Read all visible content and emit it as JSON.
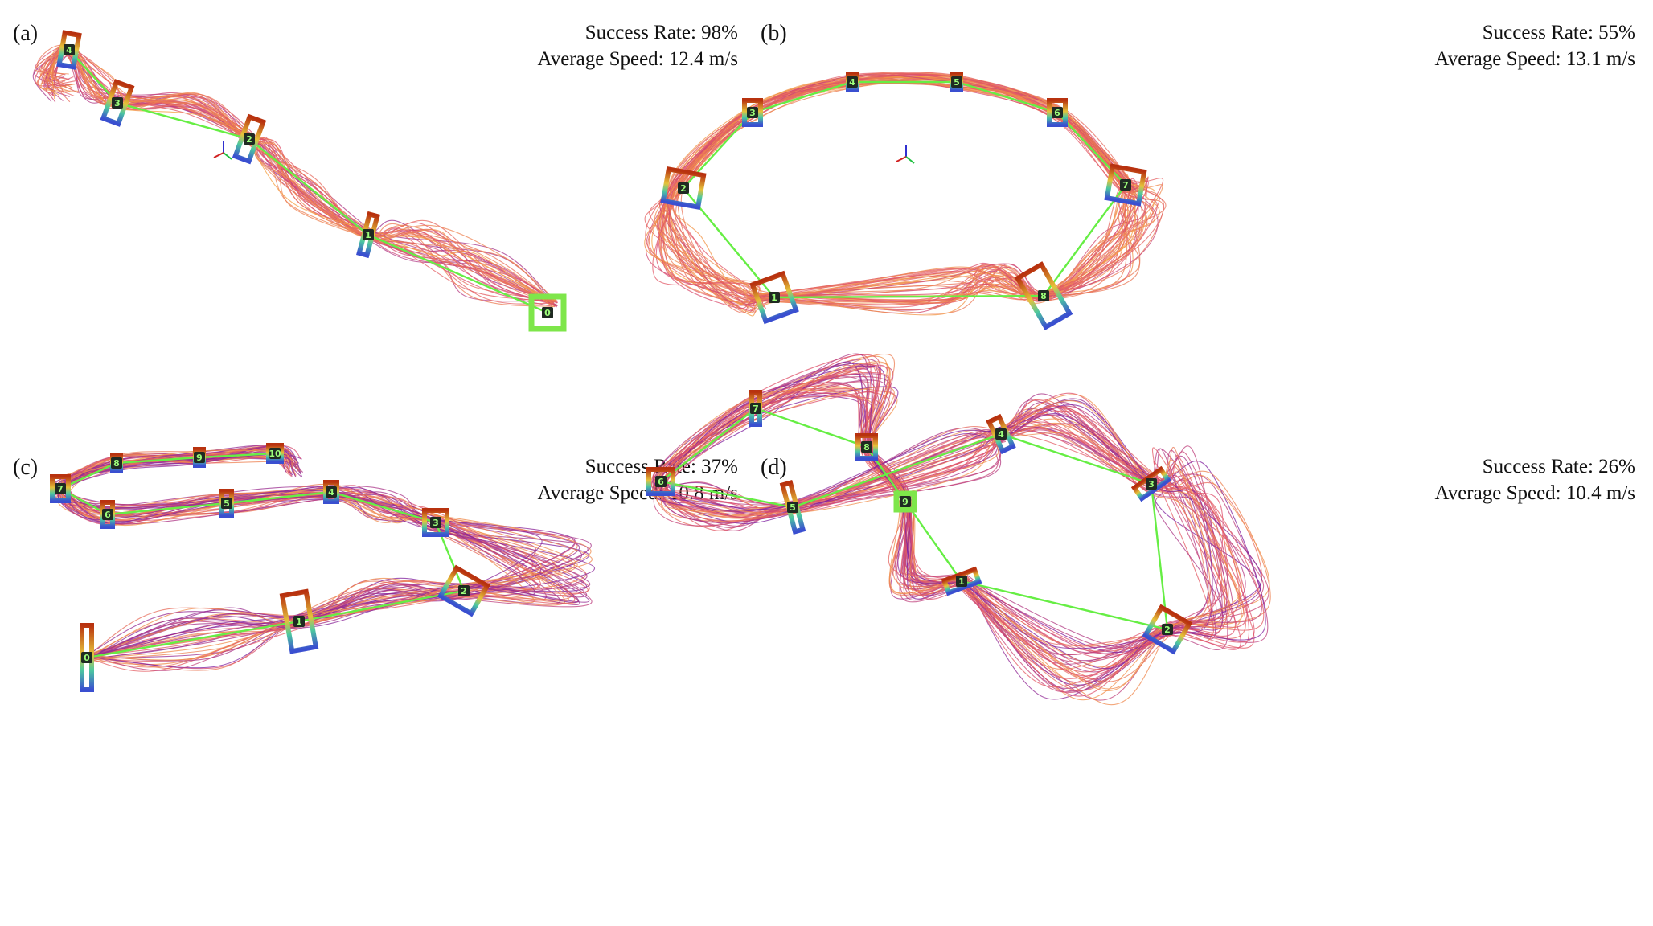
{
  "panels": [
    {
      "label": "(a)",
      "success_rate": "Success Rate: 98%",
      "average_speed": "Average Speed: 12.4 m/s",
      "gate_ids": [
        "0",
        "1",
        "2",
        "3",
        "4"
      ]
    },
    {
      "label": "(b)",
      "success_rate": "Success Rate: 55%",
      "average_speed": "Average Speed: 13.1 m/s",
      "gate_ids": [
        "1",
        "2",
        "3",
        "4",
        "5",
        "6",
        "7",
        "8"
      ]
    },
    {
      "label": "(c)",
      "success_rate": "Success Rate: 37%",
      "average_speed": "Average Speed: 10.8 m/s",
      "gate_ids": [
        "0",
        "1",
        "2",
        "3",
        "4",
        "5",
        "6",
        "7",
        "8",
        "9",
        "10"
      ]
    },
    {
      "label": "(d)",
      "success_rate": "Success Rate: 26%",
      "average_speed": "Average Speed: 10.4 m/s",
      "gate_ids": [
        "1",
        "2",
        "3",
        "4",
        "5",
        "6",
        "7",
        "8",
        "9"
      ]
    }
  ],
  "colors": {
    "reference_path": "#66ee44",
    "trajectory_slow": "#7b1fa2",
    "trajectory_mid": "#e0506a",
    "trajectory_fast": "#f5a040",
    "gate_top": "#b8320f",
    "gate_bottom": "#3a4fd0",
    "label_box": "#1f2a22",
    "label_text": "#9dff7a"
  }
}
